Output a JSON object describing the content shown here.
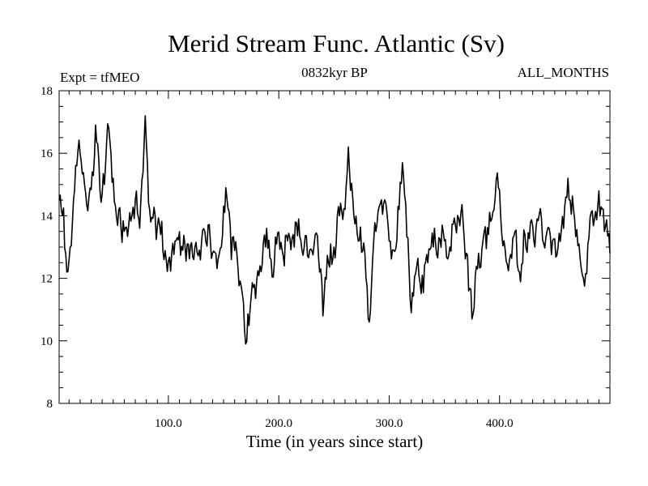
{
  "chart_data": {
    "type": "line",
    "title": "Merid Stream Func. Atlantic (Sv)",
    "subtitle_left": "Expt = tfMEO",
    "subtitle_center": "0832kyr BP",
    "subtitle_right": "ALL_MONTHS",
    "xlabel": "Time (in years since start)",
    "ylabel": "",
    "xlim": [
      1,
      500
    ],
    "ylim": [
      8,
      18
    ],
    "x_ticks": [
      100,
      200,
      300,
      400
    ],
    "x_tick_labels": [
      "100.0",
      "200.0",
      "300.0",
      "400.0"
    ],
    "y_ticks": [
      8,
      10,
      12,
      14,
      16,
      18
    ],
    "y_tick_labels": [
      "8",
      "10",
      "12",
      "14",
      "16",
      "18"
    ],
    "grid": false,
    "series": [
      {
        "name": "Merid Stream Func. Atlantic",
        "color": "#000000",
        "x_start": 1,
        "x_step": 1,
        "anchors": [
          [
            1,
            14.5
          ],
          [
            4,
            14.0
          ],
          [
            8,
            12.2
          ],
          [
            10,
            12.6
          ],
          [
            14,
            14.5
          ],
          [
            17,
            15.6
          ],
          [
            20,
            16.0
          ],
          [
            24,
            15.0
          ],
          [
            28,
            14.6
          ],
          [
            31,
            15.4
          ],
          [
            34,
            16.9
          ],
          [
            38,
            14.8
          ],
          [
            42,
            15.0
          ],
          [
            46,
            16.8
          ],
          [
            50,
            15.2
          ],
          [
            55,
            14.2
          ],
          [
            60,
            13.5
          ],
          [
            65,
            14.1
          ],
          [
            70,
            14.5
          ],
          [
            74,
            13.6
          ],
          [
            79,
            17.2
          ],
          [
            83,
            14.2
          ],
          [
            88,
            14.0
          ],
          [
            93,
            13.4
          ],
          [
            98,
            12.6
          ],
          [
            103,
            12.8
          ],
          [
            108,
            13.3
          ],
          [
            113,
            12.9
          ],
          [
            118,
            13.1
          ],
          [
            123,
            12.6
          ],
          [
            128,
            12.9
          ],
          [
            133,
            13.5
          ],
          [
            138,
            13.2
          ],
          [
            143,
            12.8
          ],
          [
            148,
            13.0
          ],
          [
            152,
            14.9
          ],
          [
            157,
            12.6
          ],
          [
            162,
            12.8
          ],
          [
            167,
            11.5
          ],
          [
            170,
            9.9
          ],
          [
            174,
            11.0
          ],
          [
            178,
            11.8
          ],
          [
            183,
            12.4
          ],
          [
            188,
            13.0
          ],
          [
            193,
            12.6
          ],
          [
            198,
            13.1
          ],
          [
            203,
            12.9
          ],
          [
            208,
            13.2
          ],
          [
            213,
            13.4
          ],
          [
            218,
            13.9
          ],
          [
            223,
            13.0
          ],
          [
            228,
            12.9
          ],
          [
            233,
            13.4
          ],
          [
            237,
            12.2
          ],
          [
            240,
            10.8
          ],
          [
            245,
            12.5
          ],
          [
            250,
            13.0
          ],
          [
            255,
            14.0
          ],
          [
            260,
            14.2
          ],
          [
            263,
            16.2
          ],
          [
            268,
            14.0
          ],
          [
            273,
            13.2
          ],
          [
            278,
            12.8
          ],
          [
            281,
            10.7
          ],
          [
            286,
            13.2
          ],
          [
            291,
            14.3
          ],
          [
            295,
            14.4
          ],
          [
            299,
            13.7
          ],
          [
            304,
            12.9
          ],
          [
            309,
            14.2
          ],
          [
            312,
            15.7
          ],
          [
            317,
            13.3
          ],
          [
            320,
            10.9
          ],
          [
            325,
            12.4
          ],
          [
            330,
            12.1
          ],
          [
            335,
            12.5
          ],
          [
            340,
            13.0
          ],
          [
            345,
            13.3
          ],
          [
            350,
            13.2
          ],
          [
            355,
            13.0
          ],
          [
            360,
            13.7
          ],
          [
            365,
            14.1
          ],
          [
            370,
            12.8
          ],
          [
            375,
            10.7
          ],
          [
            380,
            12.3
          ],
          [
            385,
            13.2
          ],
          [
            390,
            13.4
          ],
          [
            395,
            14.2
          ],
          [
            399,
            14.9
          ],
          [
            404,
            13.2
          ],
          [
            409,
            12.6
          ],
          [
            414,
            13.5
          ],
          [
            418,
            12.2
          ],
          [
            423,
            13.4
          ],
          [
            428,
            13.8
          ],
          [
            433,
            13.6
          ],
          [
            438,
            13.9
          ],
          [
            443,
            13.5
          ],
          [
            448,
            13.2
          ],
          [
            453,
            13.0
          ],
          [
            458,
            13.6
          ],
          [
            462,
            15.2
          ],
          [
            467,
            14.2
          ],
          [
            472,
            13.1
          ],
          [
            476,
            12.0
          ],
          [
            481,
            13.3
          ],
          [
            486,
            13.9
          ],
          [
            490,
            14.8
          ],
          [
            495,
            13.5
          ],
          [
            500,
            12.8
          ]
        ],
        "noise_amplitude": 0.55,
        "noise_seed": 832,
        "values": [],
        "x": []
      }
    ]
  }
}
